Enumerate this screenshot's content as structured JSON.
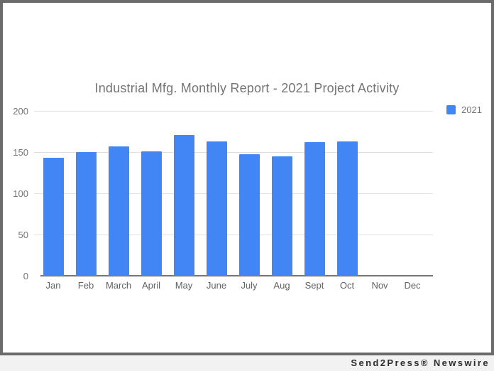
{
  "footer": {
    "credit": "Send2Press® Newswire"
  },
  "colors": {
    "bar": "#4285f4",
    "gridline": "#e0e0e0",
    "axis_line": "#757575",
    "y_label": "#757575",
    "x_label": "#616161",
    "title": "#757575",
    "frame_border": "#6b6b6b",
    "page_background": "#f2f2f2",
    "chart_background": "#ffffff",
    "credit_text": "#2d2d2d"
  },
  "chart_data": {
    "type": "bar",
    "title": "Industrial Mfg. Monthly Report - 2021 Project Activity",
    "categories": [
      "Jan",
      "Feb",
      "March",
      "April",
      "May",
      "June",
      "July",
      "Aug",
      "Sept",
      "Oct",
      "Nov",
      "Dec"
    ],
    "series": [
      {
        "name": "2021",
        "color": "#4285f4",
        "values": [
          143,
          150,
          157,
          151,
          171,
          163,
          147,
          145,
          162,
          163,
          null,
          null
        ]
      }
    ],
    "xlabel": "",
    "ylabel": "",
    "ylim": [
      0,
      200
    ],
    "yticks": [
      0,
      50,
      100,
      150,
      200
    ],
    "grid": true,
    "legend_position": "right"
  }
}
